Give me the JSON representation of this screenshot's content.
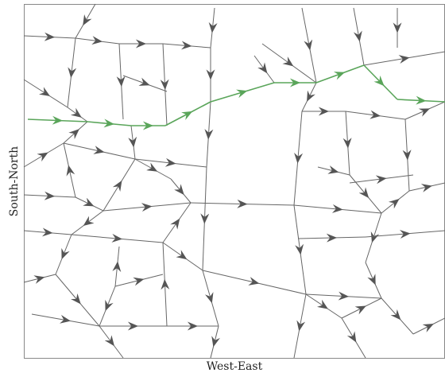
{
  "axes": {
    "x_label": "West-East",
    "y_label": "South-North"
  }
}
